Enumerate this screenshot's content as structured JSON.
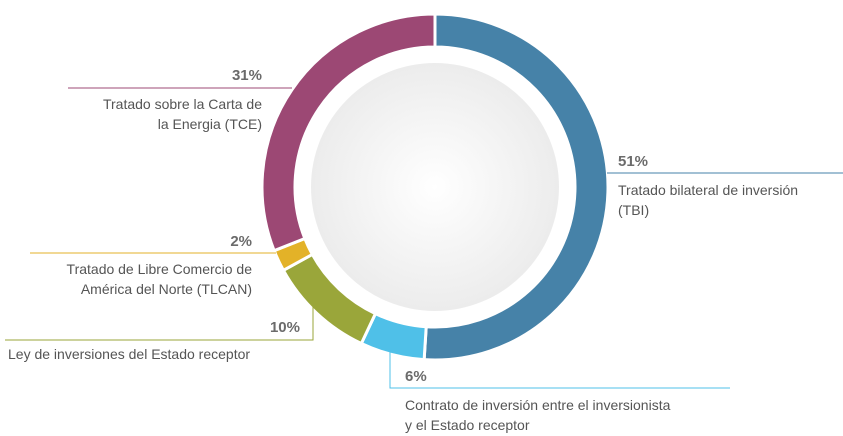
{
  "chart_data": {
    "type": "donut",
    "categories": [
      "Tratado bilateral de inversión\n(TBI)",
      "Contrato de inversión entre el inversionista\ny el Estado receptor",
      "Ley de inversiones del Estado receptor",
      "Tratado de Libre Comercio de\nAmérica del Norte (TLCAN)",
      "Tratado sobre la Carta de\nla Energia (TCE)"
    ],
    "values": [
      51,
      6,
      10,
      2,
      31
    ],
    "value_labels": [
      "51%",
      "6%",
      "10%",
      "2%",
      "31%"
    ],
    "colors": [
      "#4682a8",
      "#4fc0e8",
      "#9aa63a",
      "#e3b228",
      "#9c4874"
    ]
  }
}
